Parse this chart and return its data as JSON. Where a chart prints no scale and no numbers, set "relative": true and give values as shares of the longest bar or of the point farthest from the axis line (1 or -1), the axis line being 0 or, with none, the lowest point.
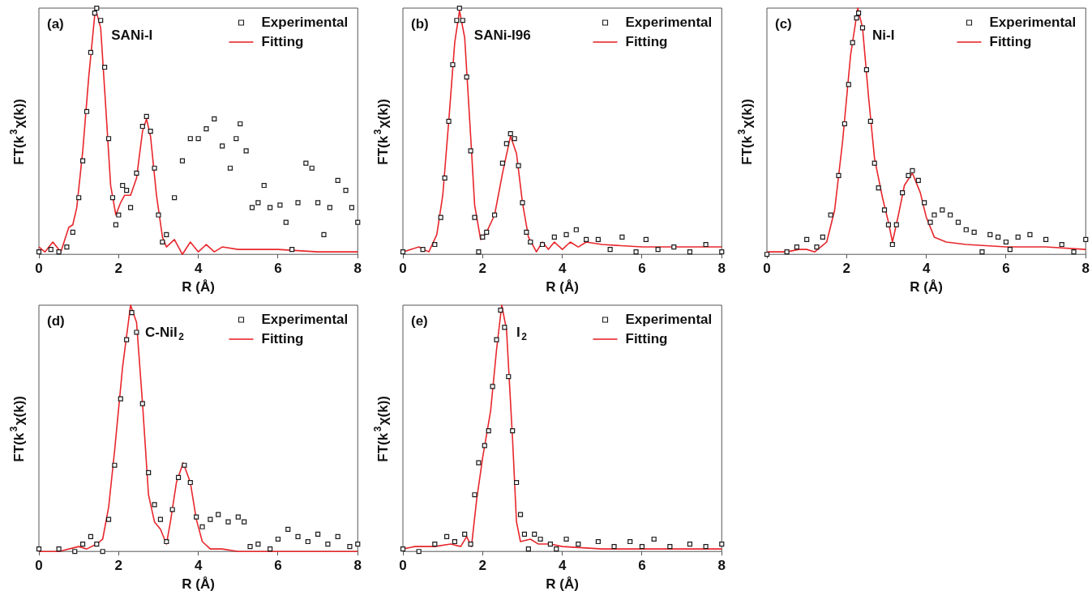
{
  "chart_data": [
    {
      "type": "scatter",
      "annotations": [
        "(a)",
        "SANi-I"
      ],
      "xlabel": "R (Å)",
      "ylabel": "FT(k$^{3}$χ(k))",
      "xlim": [
        0,
        8
      ],
      "xticks": [
        0,
        2,
        4,
        6,
        8
      ],
      "relative": true,
      "tick_labels": "x",
      "legend": "top right",
      "marker": "square",
      "grid": false,
      "series": [
        {
          "name": "Experimental",
          "color": "#1a1a1a",
          "x": [
            0,
            0.3,
            0.5,
            0.7,
            0.85,
            1.0,
            1.1,
            1.2,
            1.3,
            1.4,
            1.45,
            1.55,
            1.65,
            1.75,
            1.85,
            1.93,
            2.0,
            2.1,
            2.2,
            2.3,
            2.45,
            2.6,
            2.7,
            2.8,
            2.9,
            3.0,
            3.1,
            3.2,
            3.4,
            3.6,
            3.8,
            4.0,
            4.2,
            4.4,
            4.6,
            4.8,
            4.95,
            5.05,
            5.2,
            5.35,
            5.5,
            5.65,
            5.8,
            6.05,
            6.2,
            6.35,
            6.5,
            6.7,
            6.85,
            7.0,
            7.15,
            7.3,
            7.5,
            7.7,
            7.85,
            8.0
          ],
          "values": [
            0.01,
            0.02,
            0.01,
            0.03,
            0.09,
            0.23,
            0.38,
            0.58,
            0.82,
            0.98,
            1.0,
            0.95,
            0.76,
            0.47,
            0.23,
            0.12,
            0.16,
            0.28,
            0.26,
            0.19,
            0.33,
            0.52,
            0.56,
            0.5,
            0.35,
            0.16,
            0.05,
            0.08,
            0.23,
            0.38,
            0.47,
            0.47,
            0.51,
            0.55,
            0.44,
            0.35,
            0.47,
            0.53,
            0.42,
            0.19,
            0.21,
            0.28,
            0.19,
            0.2,
            0.13,
            0.02,
            0.21,
            0.37,
            0.35,
            0.21,
            0.08,
            0.19,
            0.3,
            0.26,
            0.19,
            0.13
          ]
        },
        {
          "name": "Fitting",
          "type": "line",
          "marker": "none",
          "color": "#e8262b",
          "x": [
            0,
            0.15,
            0.35,
            0.55,
            0.75,
            0.85,
            0.95,
            1.1,
            1.25,
            1.4,
            1.45,
            1.55,
            1.7,
            1.8,
            1.93,
            2.05,
            2.15,
            2.3,
            2.45,
            2.6,
            2.7,
            2.8,
            2.95,
            3.1,
            3.2,
            3.4,
            3.6,
            3.8,
            4.0,
            4.2,
            4.4,
            4.6,
            5.0,
            6.0,
            7.0,
            8.0
          ],
          "values": [
            0.03,
            0.01,
            0.05,
            0.01,
            0.11,
            0.12,
            0.19,
            0.42,
            0.72,
            0.97,
            0.98,
            0.92,
            0.54,
            0.28,
            0.16,
            0.21,
            0.24,
            0.24,
            0.31,
            0.5,
            0.55,
            0.48,
            0.24,
            0.07,
            0.03,
            0.06,
            0.0,
            0.05,
            0.01,
            0.04,
            0.01,
            0.03,
            0.02,
            0.02,
            0.01,
            0.01
          ]
        }
      ]
    },
    {
      "type": "scatter",
      "annotations": [
        "(b)",
        "SANi-I96"
      ],
      "xlabel": "R (Å)",
      "ylabel": "FT(k$^{3}$χ(k))",
      "xlim": [
        0,
        8
      ],
      "xticks": [
        0,
        2,
        4,
        6,
        8
      ],
      "relative": true,
      "tick_labels": "x",
      "legend": "top right",
      "marker": "square",
      "grid": false,
      "series": [
        {
          "name": "Experimental",
          "color": "#1a1a1a",
          "x": [
            0,
            0.5,
            0.8,
            0.95,
            1.05,
            1.15,
            1.25,
            1.35,
            1.42,
            1.5,
            1.6,
            1.7,
            1.8,
            1.9,
            2.0,
            2.1,
            2.3,
            2.5,
            2.6,
            2.7,
            2.8,
            2.9,
            3.0,
            3.1,
            3.2,
            3.5,
            3.8,
            4.1,
            4.35,
            4.6,
            4.9,
            5.2,
            5.5,
            5.85,
            6.1,
            6.4,
            6.8,
            7.2,
            7.6,
            8.0
          ],
          "values": [
            0.01,
            0.02,
            0.04,
            0.15,
            0.31,
            0.54,
            0.77,
            0.95,
            1.0,
            0.95,
            0.72,
            0.42,
            0.15,
            0.01,
            0.07,
            0.09,
            0.16,
            0.37,
            0.45,
            0.49,
            0.47,
            0.36,
            0.21,
            0.09,
            0.05,
            0.04,
            0.07,
            0.08,
            0.1,
            0.06,
            0.06,
            0.02,
            0.07,
            0.01,
            0.06,
            0.02,
            0.03,
            0.01,
            0.04,
            0.01
          ]
        },
        {
          "name": "Fitting",
          "type": "line",
          "marker": "none",
          "color": "#e8262b",
          "x": [
            0,
            0.4,
            0.65,
            0.85,
            1.0,
            1.15,
            1.3,
            1.42,
            1.55,
            1.7,
            1.8,
            1.95,
            2.1,
            2.3,
            2.5,
            2.7,
            2.85,
            3.0,
            3.15,
            3.35,
            3.5,
            3.65,
            3.8,
            4.0,
            4.2,
            4.4,
            4.6,
            5.0,
            6.0,
            7.0,
            8.0
          ],
          "values": [
            0.01,
            0.03,
            0.01,
            0.08,
            0.24,
            0.54,
            0.86,
            0.99,
            0.88,
            0.48,
            0.2,
            0.06,
            0.09,
            0.16,
            0.33,
            0.48,
            0.41,
            0.21,
            0.07,
            0.01,
            0.05,
            0.02,
            0.05,
            0.02,
            0.05,
            0.03,
            0.05,
            0.04,
            0.03,
            0.03,
            0.03
          ]
        }
      ]
    },
    {
      "type": "scatter",
      "annotations": [
        "(c)",
        "Ni-I"
      ],
      "xlabel": "R (Å)",
      "ylabel": "FT(k$^{3}$χ(k))",
      "xlim": [
        0,
        8
      ],
      "xticks": [
        0,
        2,
        4,
        6,
        8
      ],
      "relative": true,
      "tick_labels": "x",
      "legend": "top right",
      "marker": "square",
      "grid": false,
      "series": [
        {
          "name": "Experimental",
          "color": "#1a1a1a",
          "x": [
            0,
            0.5,
            0.75,
            1.0,
            1.25,
            1.4,
            1.6,
            1.8,
            1.95,
            2.05,
            2.15,
            2.25,
            2.3,
            2.4,
            2.5,
            2.6,
            2.7,
            2.8,
            2.95,
            3.05,
            3.15,
            3.25,
            3.4,
            3.55,
            3.65,
            3.8,
            3.95,
            4.1,
            4.2,
            4.4,
            4.6,
            4.8,
            5.0,
            5.2,
            5.4,
            5.6,
            5.8,
            6.0,
            6.1,
            6.3,
            6.6,
            7.0,
            7.4,
            7.7,
            8.0
          ],
          "values": [
            0.0,
            0.01,
            0.03,
            0.06,
            0.03,
            0.07,
            0.16,
            0.32,
            0.53,
            0.69,
            0.86,
            0.96,
            0.98,
            0.92,
            0.75,
            0.54,
            0.37,
            0.27,
            0.18,
            0.12,
            0.04,
            0.12,
            0.25,
            0.32,
            0.34,
            0.3,
            0.21,
            0.13,
            0.16,
            0.18,
            0.16,
            0.13,
            0.1,
            0.09,
            0.01,
            0.08,
            0.07,
            0.05,
            0.02,
            0.07,
            0.08,
            0.06,
            0.04,
            0.01,
            0.06
          ]
        },
        {
          "name": "Fitting",
          "type": "line",
          "marker": "none",
          "color": "#e8262b",
          "x": [
            0,
            0.5,
            0.8,
            1.0,
            1.2,
            1.5,
            1.7,
            1.9,
            2.1,
            2.28,
            2.4,
            2.55,
            2.7,
            2.9,
            3.05,
            3.15,
            3.3,
            3.45,
            3.65,
            3.85,
            4.0,
            4.2,
            4.5,
            5.0,
            6.0,
            7.0,
            8.0
          ],
          "values": [
            0.01,
            0.01,
            0.02,
            0.02,
            0.01,
            0.05,
            0.18,
            0.46,
            0.81,
            1.0,
            0.92,
            0.64,
            0.39,
            0.23,
            0.13,
            0.05,
            0.16,
            0.28,
            0.33,
            0.25,
            0.15,
            0.07,
            0.05,
            0.04,
            0.03,
            0.03,
            0.02
          ]
        }
      ]
    },
    {
      "type": "scatter",
      "annotations": [
        "(d)",
        "C-NiI$_{2}$"
      ],
      "xlabel": "R (Å)",
      "ylabel": "FT(k$^{3}$χ(k))",
      "xlim": [
        0,
        8
      ],
      "xticks": [
        0,
        2,
        4,
        6,
        8
      ],
      "relative": true,
      "tick_labels": "x",
      "legend": "top right",
      "marker": "square",
      "grid": false,
      "series": [
        {
          "name": "Experimental",
          "color": "#1a1a1a",
          "x": [
            0,
            0.5,
            0.9,
            1.1,
            1.3,
            1.45,
            1.6,
            1.75,
            1.9,
            2.05,
            2.2,
            2.33,
            2.45,
            2.6,
            2.75,
            2.9,
            3.05,
            3.2,
            3.35,
            3.5,
            3.65,
            3.8,
            3.95,
            4.1,
            4.3,
            4.5,
            4.75,
            5.0,
            5.15,
            5.3,
            5.5,
            5.8,
            6.0,
            6.25,
            6.5,
            6.75,
            7.0,
            7.25,
            7.5,
            7.8,
            8.0
          ],
          "values": [
            0.01,
            0.01,
            0.0,
            0.03,
            0.06,
            0.03,
            0.0,
            0.13,
            0.35,
            0.62,
            0.86,
            0.97,
            0.89,
            0.6,
            0.32,
            0.19,
            0.13,
            0.04,
            0.17,
            0.3,
            0.35,
            0.28,
            0.14,
            0.1,
            0.13,
            0.15,
            0.12,
            0.14,
            0.12,
            0.02,
            0.03,
            0.01,
            0.05,
            0.09,
            0.06,
            0.04,
            0.07,
            0.03,
            0.06,
            0.02,
            0.03
          ]
        },
        {
          "name": "Fitting",
          "type": "line",
          "marker": "none",
          "color": "#e8262b",
          "x": [
            0,
            0.5,
            1.0,
            1.2,
            1.45,
            1.6,
            1.75,
            1.9,
            2.1,
            2.3,
            2.45,
            2.6,
            2.75,
            2.9,
            3.05,
            3.2,
            3.3,
            3.45,
            3.62,
            3.8,
            3.95,
            4.1,
            4.3,
            4.6,
            5.0,
            6.0,
            8.0
          ],
          "values": [
            0.0,
            0.0,
            0.02,
            0.01,
            0.03,
            0.05,
            0.18,
            0.41,
            0.75,
            1.0,
            0.93,
            0.6,
            0.23,
            0.12,
            0.09,
            0.03,
            0.12,
            0.28,
            0.36,
            0.28,
            0.13,
            0.04,
            0.01,
            0.01,
            0.0,
            0.0,
            0.0
          ]
        }
      ]
    },
    {
      "type": "scatter",
      "annotations": [
        "(e)",
        "I$_{2}$"
      ],
      "xlabel": "R (Å)",
      "ylabel": "FT(k$^{3}$χ(k))",
      "xlim": [
        0,
        8
      ],
      "xticks": [
        0,
        2,
        4,
        6,
        8
      ],
      "relative": true,
      "tick_labels": "x",
      "legend": "top right",
      "marker": "square",
      "grid": false,
      "series": [
        {
          "name": "Experimental",
          "color": "#1a1a1a",
          "x": [
            0,
            0.4,
            0.8,
            1.1,
            1.3,
            1.55,
            1.7,
            1.8,
            1.9,
            2.05,
            2.15,
            2.25,
            2.35,
            2.45,
            2.55,
            2.65,
            2.75,
            2.85,
            2.95,
            3.05,
            3.15,
            3.3,
            3.45,
            3.7,
            3.85,
            4.1,
            4.4,
            4.9,
            5.3,
            5.7,
            6.0,
            6.3,
            6.7,
            7.2,
            7.6,
            8.0
          ],
          "values": [
            0.01,
            0.0,
            0.03,
            0.06,
            0.04,
            0.07,
            0.03,
            0.23,
            0.36,
            0.43,
            0.49,
            0.67,
            0.86,
            0.98,
            0.91,
            0.71,
            0.49,
            0.28,
            0.15,
            0.07,
            0.01,
            0.07,
            0.05,
            0.03,
            0.01,
            0.05,
            0.03,
            0.04,
            0.02,
            0.04,
            0.02,
            0.05,
            0.02,
            0.03,
            0.02,
            0.03
          ]
        },
        {
          "name": "Fitting",
          "type": "line",
          "marker": "none",
          "color": "#e8262b",
          "x": [
            0,
            0.3,
            0.5,
            0.8,
            1.2,
            1.45,
            1.6,
            1.72,
            1.85,
            2.0,
            2.2,
            2.35,
            2.48,
            2.6,
            2.75,
            2.85,
            2.95,
            3.2,
            3.4,
            3.7,
            4.0,
            5.0,
            6.0,
            8.0
          ],
          "values": [
            0.01,
            0.02,
            0.02,
            0.02,
            0.03,
            0.02,
            0.06,
            0.02,
            0.21,
            0.38,
            0.57,
            0.82,
            1.0,
            0.9,
            0.46,
            0.12,
            0.04,
            0.05,
            0.03,
            0.03,
            0.02,
            0.01,
            0.01,
            0.01
          ]
        }
      ]
    }
  ]
}
